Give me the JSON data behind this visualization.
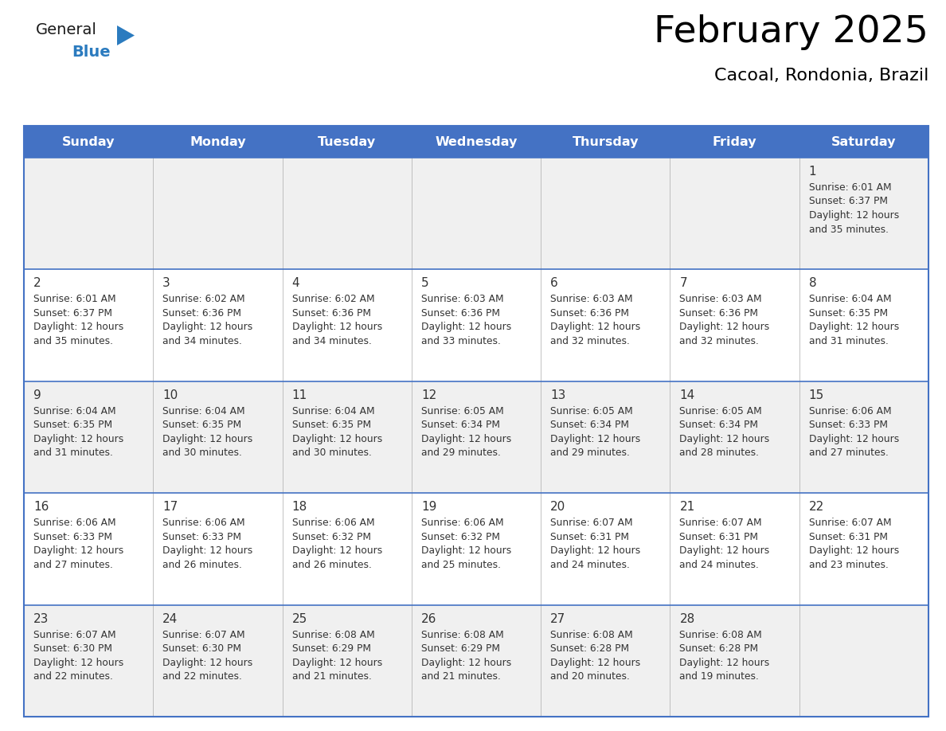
{
  "title": "February 2025",
  "subtitle": "Cacoal, Rondonia, Brazil",
  "header_bg": "#4472C4",
  "header_text": "#FFFFFF",
  "day_names": [
    "Sunday",
    "Monday",
    "Tuesday",
    "Wednesday",
    "Thursday",
    "Friday",
    "Saturday"
  ],
  "row_bg_odd": "#F0F0F0",
  "row_bg_even": "#FFFFFF",
  "border_color": "#4472C4",
  "cell_border_color": "#AAAAAA",
  "day_num_color": "#333333",
  "info_color": "#333333",
  "title_color": "#000000",
  "subtitle_color": "#000000",
  "calendar": [
    [
      null,
      null,
      null,
      null,
      null,
      null,
      {
        "day": 1,
        "sunrise": "6:01 AM",
        "sunset": "6:37 PM",
        "daylight": "12 hours",
        "daylight2": "and 35 minutes."
      }
    ],
    [
      {
        "day": 2,
        "sunrise": "6:01 AM",
        "sunset": "6:37 PM",
        "daylight": "12 hours",
        "daylight2": "and 35 minutes."
      },
      {
        "day": 3,
        "sunrise": "6:02 AM",
        "sunset": "6:36 PM",
        "daylight": "12 hours",
        "daylight2": "and 34 minutes."
      },
      {
        "day": 4,
        "sunrise": "6:02 AM",
        "sunset": "6:36 PM",
        "daylight": "12 hours",
        "daylight2": "and 34 minutes."
      },
      {
        "day": 5,
        "sunrise": "6:03 AM",
        "sunset": "6:36 PM",
        "daylight": "12 hours",
        "daylight2": "and 33 minutes."
      },
      {
        "day": 6,
        "sunrise": "6:03 AM",
        "sunset": "6:36 PM",
        "daylight": "12 hours",
        "daylight2": "and 32 minutes."
      },
      {
        "day": 7,
        "sunrise": "6:03 AM",
        "sunset": "6:36 PM",
        "daylight": "12 hours",
        "daylight2": "and 32 minutes."
      },
      {
        "day": 8,
        "sunrise": "6:04 AM",
        "sunset": "6:35 PM",
        "daylight": "12 hours",
        "daylight2": "and 31 minutes."
      }
    ],
    [
      {
        "day": 9,
        "sunrise": "6:04 AM",
        "sunset": "6:35 PM",
        "daylight": "12 hours",
        "daylight2": "and 31 minutes."
      },
      {
        "day": 10,
        "sunrise": "6:04 AM",
        "sunset": "6:35 PM",
        "daylight": "12 hours",
        "daylight2": "and 30 minutes."
      },
      {
        "day": 11,
        "sunrise": "6:04 AM",
        "sunset": "6:35 PM",
        "daylight": "12 hours",
        "daylight2": "and 30 minutes."
      },
      {
        "day": 12,
        "sunrise": "6:05 AM",
        "sunset": "6:34 PM",
        "daylight": "12 hours",
        "daylight2": "and 29 minutes."
      },
      {
        "day": 13,
        "sunrise": "6:05 AM",
        "sunset": "6:34 PM",
        "daylight": "12 hours",
        "daylight2": "and 29 minutes."
      },
      {
        "day": 14,
        "sunrise": "6:05 AM",
        "sunset": "6:34 PM",
        "daylight": "12 hours",
        "daylight2": "and 28 minutes."
      },
      {
        "day": 15,
        "sunrise": "6:06 AM",
        "sunset": "6:33 PM",
        "daylight": "12 hours",
        "daylight2": "and 27 minutes."
      }
    ],
    [
      {
        "day": 16,
        "sunrise": "6:06 AM",
        "sunset": "6:33 PM",
        "daylight": "12 hours",
        "daylight2": "and 27 minutes."
      },
      {
        "day": 17,
        "sunrise": "6:06 AM",
        "sunset": "6:33 PM",
        "daylight": "12 hours",
        "daylight2": "and 26 minutes."
      },
      {
        "day": 18,
        "sunrise": "6:06 AM",
        "sunset": "6:32 PM",
        "daylight": "12 hours",
        "daylight2": "and 26 minutes."
      },
      {
        "day": 19,
        "sunrise": "6:06 AM",
        "sunset": "6:32 PM",
        "daylight": "12 hours",
        "daylight2": "and 25 minutes."
      },
      {
        "day": 20,
        "sunrise": "6:07 AM",
        "sunset": "6:31 PM",
        "daylight": "12 hours",
        "daylight2": "and 24 minutes."
      },
      {
        "day": 21,
        "sunrise": "6:07 AM",
        "sunset": "6:31 PM",
        "daylight": "12 hours",
        "daylight2": "and 24 minutes."
      },
      {
        "day": 22,
        "sunrise": "6:07 AM",
        "sunset": "6:31 PM",
        "daylight": "12 hours",
        "daylight2": "and 23 minutes."
      }
    ],
    [
      {
        "day": 23,
        "sunrise": "6:07 AM",
        "sunset": "6:30 PM",
        "daylight": "12 hours",
        "daylight2": "and 22 minutes."
      },
      {
        "day": 24,
        "sunrise": "6:07 AM",
        "sunset": "6:30 PM",
        "daylight": "12 hours",
        "daylight2": "and 22 minutes."
      },
      {
        "day": 25,
        "sunrise": "6:08 AM",
        "sunset": "6:29 PM",
        "daylight": "12 hours",
        "daylight2": "and 21 minutes."
      },
      {
        "day": 26,
        "sunrise": "6:08 AM",
        "sunset": "6:29 PM",
        "daylight": "12 hours",
        "daylight2": "and 21 minutes."
      },
      {
        "day": 27,
        "sunrise": "6:08 AM",
        "sunset": "6:28 PM",
        "daylight": "12 hours",
        "daylight2": "and 20 minutes."
      },
      {
        "day": 28,
        "sunrise": "6:08 AM",
        "sunset": "6:28 PM",
        "daylight": "12 hours",
        "daylight2": "and 19 minutes."
      },
      null
    ]
  ],
  "logo_color_general": "#1A1A1A",
  "logo_color_blue": "#2B7BBF",
  "logo_triangle_color": "#2B7BBF",
  "fig_width": 11.88,
  "fig_height": 9.18,
  "dpi": 100
}
